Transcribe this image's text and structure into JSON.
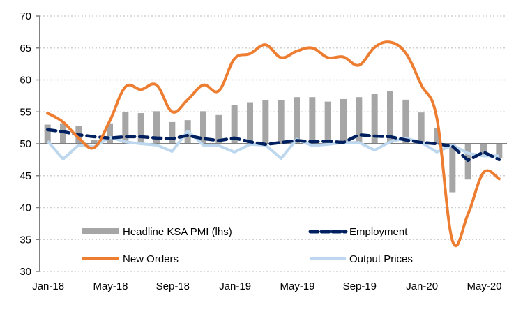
{
  "chart_data": {
    "type": "bar+line",
    "title": "",
    "xlabel": "",
    "ylabel": "",
    "ylim": [
      30,
      70
    ],
    "yticks": [
      30,
      35,
      40,
      45,
      50,
      55,
      60,
      65,
      70
    ],
    "bar_baseline": 50,
    "grid": true,
    "legend_position": "bottom-inside",
    "months": [
      "Jan-18",
      "Feb-18",
      "Mar-18",
      "Apr-18",
      "May-18",
      "Jun-18",
      "Jul-18",
      "Aug-18",
      "Sep-18",
      "Oct-18",
      "Nov-18",
      "Dec-18",
      "Jan-19",
      "Feb-19",
      "Mar-19",
      "Apr-19",
      "May-19",
      "Jun-19",
      "Jul-19",
      "Aug-19",
      "Sep-19",
      "Oct-19",
      "Nov-19",
      "Dec-19",
      "Jan-20",
      "Feb-20",
      "Mar-20",
      "Apr-20",
      "May-20",
      "Jun-20"
    ],
    "xtick_labels": [
      "Jan-18",
      "May-18",
      "Sep-18",
      "Jan-19",
      "May-19",
      "Sep-19",
      "Jan-20",
      "May-20"
    ],
    "series": [
      {
        "name": "Headline KSA PMI (lhs)",
        "type": "bar",
        "color": "#a6a6a6",
        "values": [
          53.0,
          53.2,
          52.8,
          50.6,
          53.2,
          55.0,
          54.8,
          55.1,
          53.4,
          53.7,
          55.1,
          54.5,
          56.1,
          56.5,
          56.8,
          56.8,
          57.3,
          57.3,
          56.6,
          57.0,
          57.3,
          57.8,
          58.3,
          56.9,
          54.9,
          52.5,
          42.4,
          44.4,
          48.2,
          47.7
        ]
      },
      {
        "name": "Employment",
        "type": "line",
        "style": "dashed",
        "color": "#002060",
        "values": [
          52.2,
          51.9,
          51.4,
          51.1,
          50.9,
          51.1,
          51.1,
          50.9,
          50.8,
          51.3,
          50.8,
          50.5,
          50.9,
          50.3,
          49.9,
          50.2,
          50.5,
          50.3,
          50.4,
          50.2,
          51.4,
          51.2,
          51.1,
          50.6,
          50.2,
          50.0,
          49.6,
          47.4,
          48.7,
          47.5
        ]
      },
      {
        "name": "New Orders",
        "type": "line",
        "style": "solid",
        "color": "#ed7d31",
        "values": [
          54.8,
          53.4,
          50.9,
          49.4,
          53.6,
          58.9,
          58.5,
          59.2,
          55.0,
          56.9,
          59.2,
          58.3,
          63.3,
          64.1,
          65.5,
          63.5,
          64.5,
          65.0,
          63.5,
          63.6,
          62.3,
          65.1,
          65.9,
          64.2,
          59.2,
          54.0,
          34.8,
          39.0,
          45.5,
          44.5
        ]
      },
      {
        "name": "Output Prices",
        "type": "line",
        "style": "solid",
        "color": "#bdd7ee",
        "values": [
          50.4,
          47.6,
          49.8,
          49.5,
          51.0,
          50.3,
          50.0,
          49.8,
          48.8,
          52.0,
          49.8,
          49.7,
          48.7,
          49.9,
          49.8,
          47.7,
          50.7,
          49.7,
          49.9,
          50.2,
          50.2,
          49.0,
          50.3,
          50.9,
          50.2,
          48.7,
          49.8,
          48.5,
          48.1,
          48.1
        ]
      }
    ]
  }
}
